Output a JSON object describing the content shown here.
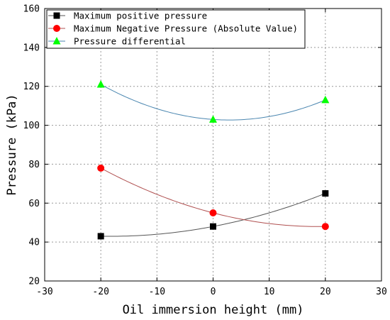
{
  "chart_data": {
    "type": "line",
    "xlabel": "Oil immersion height (mm)",
    "ylabel": "Pressure (kPa)",
    "xlim": [
      -30,
      30
    ],
    "ylim": [
      20,
      160
    ],
    "xticks": [
      -30,
      -20,
      -10,
      0,
      10,
      20,
      30
    ],
    "yticks": [
      20,
      40,
      60,
      80,
      100,
      120,
      140,
      160
    ],
    "x": [
      -20,
      0,
      20
    ],
    "grid": true,
    "legend_position": "top-left",
    "series": [
      {
        "name": "Maximum positive pressure",
        "values": [
          43,
          48,
          65
        ],
        "marker": "square",
        "marker_color": "#000000",
        "line_color": "#555555"
      },
      {
        "name": "Maximum Negative Pressure (Absolute Value)",
        "values": [
          78,
          55,
          48
        ],
        "marker": "circle",
        "marker_color": "#ff0000",
        "line_color": "#b05050"
      },
      {
        "name": "Pressure differential",
        "values": [
          121,
          103,
          113
        ],
        "marker": "triangle",
        "marker_color": "#00ff00",
        "line_color": "#4a86b0"
      }
    ]
  }
}
